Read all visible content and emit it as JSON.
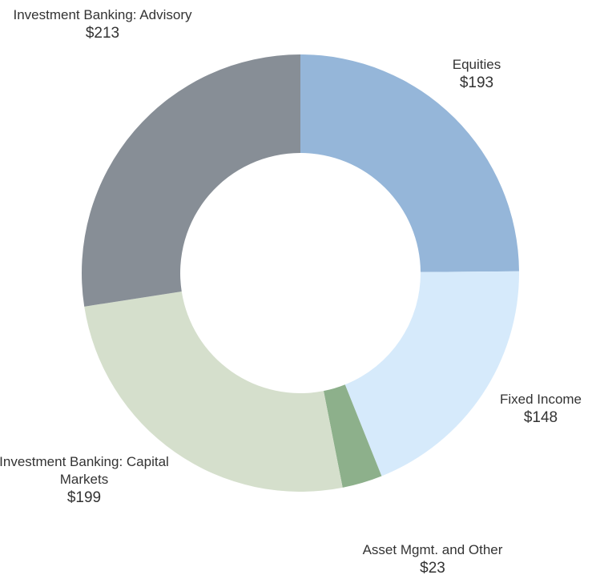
{
  "chart_data": {
    "type": "donut",
    "categories": [
      "Equities",
      "Fixed Income",
      "Asset Mgmt. and Other",
      "Investment Banking: Capital Markets",
      "Investment Banking: Advisory"
    ],
    "values": [
      193,
      148,
      23,
      199,
      213
    ],
    "value_labels": [
      "$193",
      "$148",
      "$23",
      "$199",
      "$213"
    ],
    "colors": [
      "#95b6d9",
      "#d6eafb",
      "#8db08b",
      "#d5dfcc",
      "#878e96"
    ]
  }
}
